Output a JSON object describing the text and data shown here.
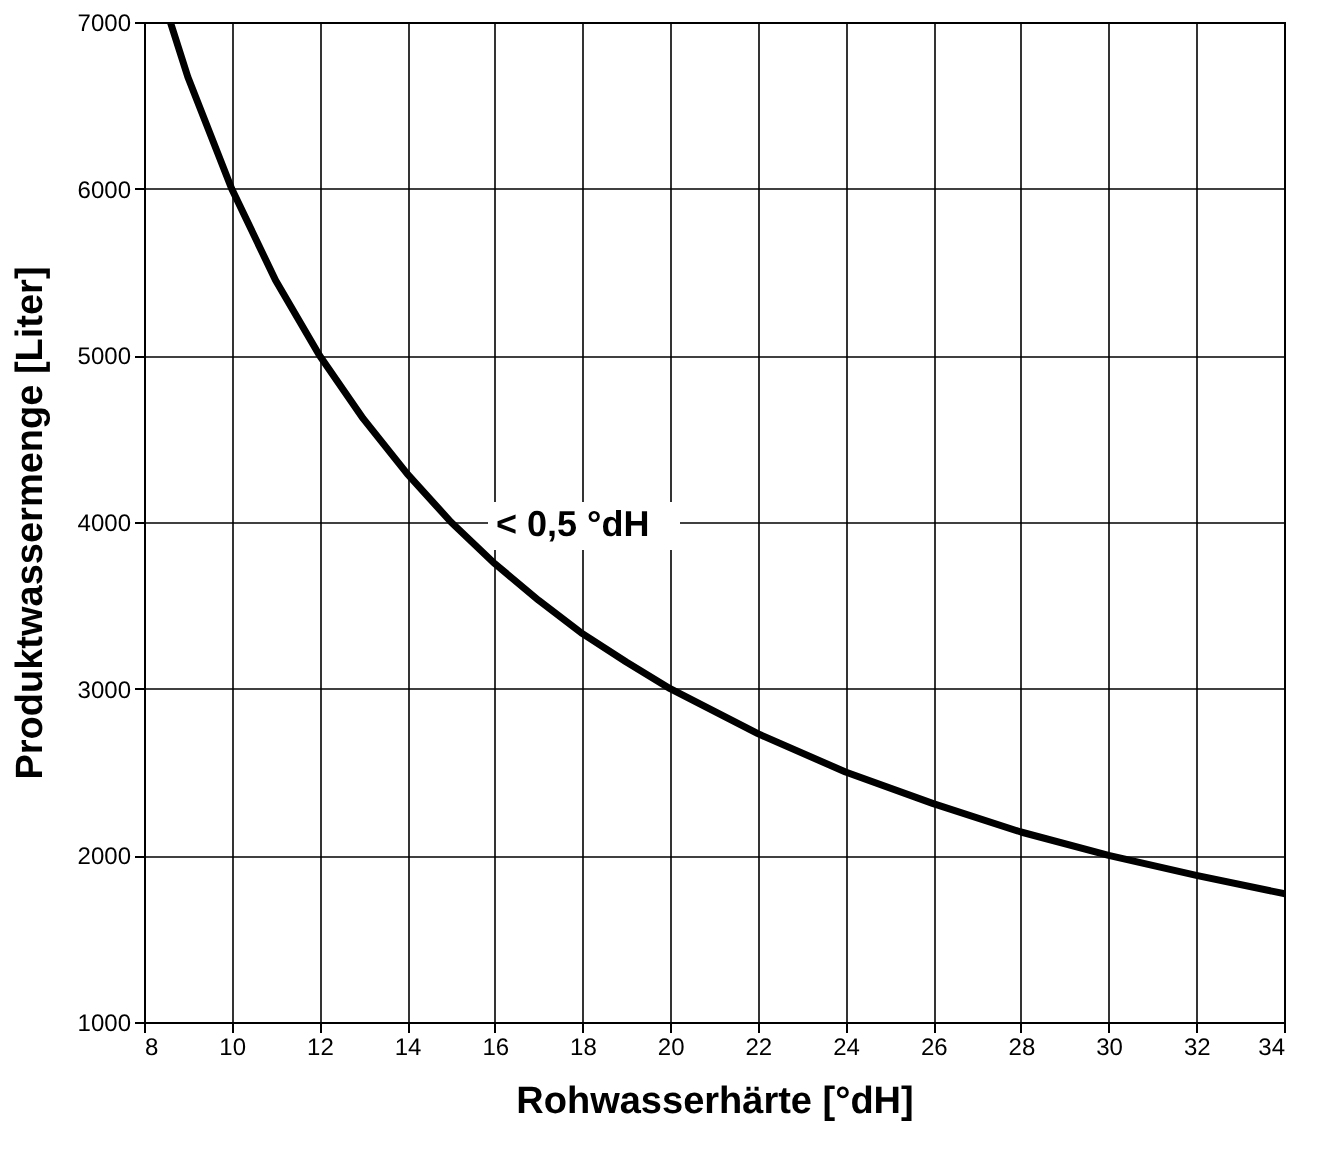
{
  "chart_data": {
    "type": "line",
    "xlabel": "Rohwasserhärte [°dH]",
    "ylabel": "Produktwassermenge [Liter]",
    "series": [
      {
        "color": "#000000",
        "x": [
          8.6,
          9,
          10,
          11,
          12,
          13,
          14,
          15,
          16,
          17,
          18,
          19,
          20,
          22,
          24,
          26,
          28,
          30,
          32,
          34
        ],
        "values": [
          7000,
          6670,
          6000,
          5450,
          5000,
          4620,
          4290,
          4000,
          3750,
          3530,
          3330,
          3160,
          3000,
          2730,
          2500,
          2310,
          2140,
          2000,
          1880,
          1770
        ]
      }
    ],
    "annotations": [
      "< 0,5 °dH"
    ],
    "xlim": [
      8,
      34
    ],
    "xticks": [
      8,
      10,
      12,
      14,
      16,
      18,
      20,
      22,
      24,
      26,
      28,
      30,
      32,
      34
    ],
    "ylim": [
      1000,
      7000
    ],
    "yticks": [
      1000,
      2000,
      3000,
      4000,
      5000,
      6000,
      7000
    ],
    "grid": true,
    "marker": "none",
    "line_style": "solid"
  }
}
